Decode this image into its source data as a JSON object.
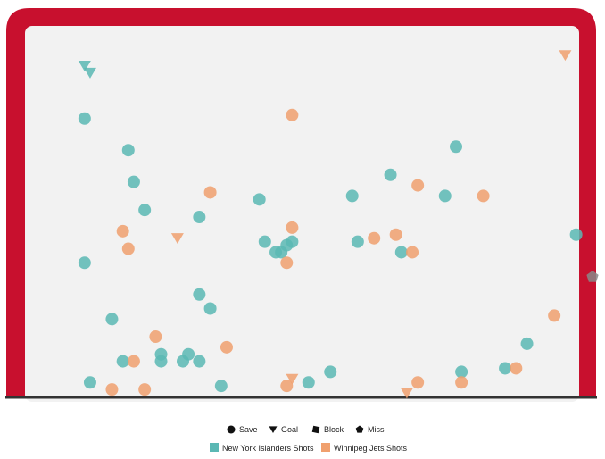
{
  "chart_data": {
    "type": "scatter",
    "title": "",
    "xlabel": "",
    "ylabel": "",
    "xlim": [
      0,
      100
    ],
    "ylim": [
      0,
      100
    ],
    "colors": {
      "frame": "#c8102e",
      "ice": "#f2f2f2",
      "goal_line": "#333333"
    },
    "marker_legend": [
      {
        "shape": "circle",
        "label": "Save"
      },
      {
        "shape": "triangle-down",
        "label": "Goal"
      },
      {
        "shape": "square",
        "label": "Block"
      },
      {
        "shape": "pentagon",
        "label": "Miss"
      }
    ],
    "series": [
      {
        "name": "New York Islanders Shots",
        "color": "#5bb8b4",
        "points": [
          {
            "x": 7,
            "y": 94,
            "result": "Goal"
          },
          {
            "x": 8,
            "y": 92,
            "result": "Goal"
          },
          {
            "x": 7,
            "y": 79,
            "result": "Save"
          },
          {
            "x": 15,
            "y": 70,
            "result": "Save"
          },
          {
            "x": 16,
            "y": 61,
            "result": "Save"
          },
          {
            "x": 18,
            "y": 53,
            "result": "Save"
          },
          {
            "x": 28,
            "y": 51,
            "result": "Save"
          },
          {
            "x": 7,
            "y": 38,
            "result": "Save"
          },
          {
            "x": 12,
            "y": 22,
            "result": "Save"
          },
          {
            "x": 28,
            "y": 29,
            "result": "Save"
          },
          {
            "x": 30,
            "y": 25,
            "result": "Save"
          },
          {
            "x": 14,
            "y": 10,
            "result": "Save"
          },
          {
            "x": 21,
            "y": 10,
            "result": "Save"
          },
          {
            "x": 21,
            "y": 12,
            "result": "Save"
          },
          {
            "x": 25,
            "y": 10,
            "result": "Save"
          },
          {
            "x": 26,
            "y": 12,
            "result": "Save"
          },
          {
            "x": 28,
            "y": 10,
            "result": "Save"
          },
          {
            "x": 8,
            "y": 4,
            "result": "Save"
          },
          {
            "x": 32,
            "y": 3,
            "result": "Save"
          },
          {
            "x": 39,
            "y": 56,
            "result": "Save"
          },
          {
            "x": 40,
            "y": 44,
            "result": "Save"
          },
          {
            "x": 42,
            "y": 41,
            "result": "Save"
          },
          {
            "x": 43,
            "y": 41,
            "result": "Save"
          },
          {
            "x": 44,
            "y": 43,
            "result": "Save"
          },
          {
            "x": 45,
            "y": 44,
            "result": "Save"
          },
          {
            "x": 56,
            "y": 57,
            "result": "Save"
          },
          {
            "x": 57,
            "y": 44,
            "result": "Save"
          },
          {
            "x": 63,
            "y": 63,
            "result": "Save"
          },
          {
            "x": 65,
            "y": 41,
            "result": "Save"
          },
          {
            "x": 73,
            "y": 57,
            "result": "Save"
          },
          {
            "x": 75,
            "y": 71,
            "result": "Save"
          },
          {
            "x": 48,
            "y": 4,
            "result": "Save"
          },
          {
            "x": 52,
            "y": 7,
            "result": "Save"
          },
          {
            "x": 76,
            "y": 7,
            "result": "Save"
          },
          {
            "x": 84,
            "y": 8,
            "result": "Save"
          },
          {
            "x": 88,
            "y": 15,
            "result": "Save"
          },
          {
            "x": 97,
            "y": 46,
            "result": "Save"
          },
          {
            "x": 100,
            "y": 34,
            "result": "Miss"
          }
        ]
      },
      {
        "name": "Winnipeg Jets Shots",
        "color": "#f0a06e",
        "points": [
          {
            "x": 95,
            "y": 97,
            "result": "Goal"
          },
          {
            "x": 45,
            "y": 80,
            "result": "Save"
          },
          {
            "x": 30,
            "y": 58,
            "result": "Save"
          },
          {
            "x": 14,
            "y": 47,
            "result": "Save"
          },
          {
            "x": 15,
            "y": 42,
            "result": "Save"
          },
          {
            "x": 24,
            "y": 45,
            "result": "Goal"
          },
          {
            "x": 45,
            "y": 48,
            "result": "Save"
          },
          {
            "x": 44,
            "y": 38,
            "result": "Save"
          },
          {
            "x": 60,
            "y": 45,
            "result": "Save"
          },
          {
            "x": 64,
            "y": 46,
            "result": "Save"
          },
          {
            "x": 67,
            "y": 41,
            "result": "Save"
          },
          {
            "x": 68,
            "y": 60,
            "result": "Save"
          },
          {
            "x": 80,
            "y": 57,
            "result": "Save"
          },
          {
            "x": 93,
            "y": 23,
            "result": "Save"
          },
          {
            "x": 20,
            "y": 17,
            "result": "Save"
          },
          {
            "x": 33,
            "y": 14,
            "result": "Save"
          },
          {
            "x": 16,
            "y": 10,
            "result": "Save"
          },
          {
            "x": 12,
            "y": 2,
            "result": "Save"
          },
          {
            "x": 18,
            "y": 2,
            "result": "Save"
          },
          {
            "x": 45,
            "y": 5,
            "result": "Goal"
          },
          {
            "x": 44,
            "y": 3,
            "result": "Save"
          },
          {
            "x": 66,
            "y": 1,
            "result": "Goal"
          },
          {
            "x": 68,
            "y": 4,
            "result": "Save"
          },
          {
            "x": 76,
            "y": 4,
            "result": "Save"
          },
          {
            "x": 86,
            "y": 8,
            "result": "Save"
          }
        ]
      }
    ]
  }
}
